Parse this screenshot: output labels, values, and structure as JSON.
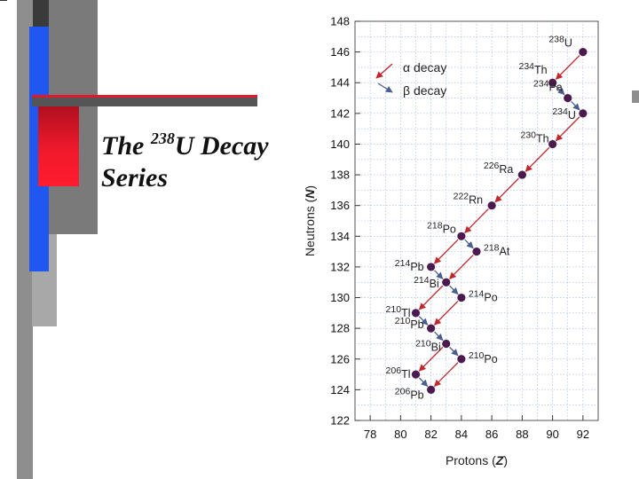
{
  "slide": {
    "title_text": "The ",
    "title_superscript": "238",
    "title_element": "U Decay",
    "title_line2": "Series"
  },
  "colors": {
    "alpha": "#c0282d",
    "beta": "#4a5e8f",
    "point": "#4b1a4e",
    "bar_red": "#e0192b",
    "bar_blue": "#1f57f0",
    "bar_gray": "#8c8c8c",
    "bar_dark": "#6a6a6a"
  },
  "chart_data": {
    "type": "scatter",
    "title": "",
    "xlabel": "Protons (",
    "xlabel_var": "Z",
    "xlabel_end": ")",
    "ylabel": "Neutrons (",
    "ylabel_var": "N",
    "ylabel_end": ")",
    "xlim": [
      77,
      93
    ],
    "ylim": [
      122,
      148
    ],
    "xticks": [
      "78",
      "80",
      "82",
      "84",
      "86",
      "88",
      "90",
      "92"
    ],
    "yticks": [
      "122",
      "124",
      "126",
      "128",
      "130",
      "132",
      "134",
      "136",
      "138",
      "140",
      "142",
      "144",
      "146",
      "148"
    ],
    "grid": true,
    "legend": [
      {
        "label": "α decay",
        "kind": "alpha"
      },
      {
        "label": "β decay",
        "kind": "beta"
      }
    ],
    "nuclides": [
      {
        "id": "U238",
        "mass": "238",
        "sym": "U",
        "z": 92,
        "n": 146
      },
      {
        "id": "Th234",
        "mass": "234",
        "sym": "Th",
        "z": 90,
        "n": 144
      },
      {
        "id": "Pa234",
        "mass": "234",
        "sym": "Pa",
        "z": 91,
        "n": 143
      },
      {
        "id": "U234",
        "mass": "234",
        "sym": "U",
        "z": 92,
        "n": 142
      },
      {
        "id": "Th230",
        "mass": "230",
        "sym": "Th",
        "z": 90,
        "n": 140
      },
      {
        "id": "Ra226",
        "mass": "226",
        "sym": "Ra",
        "z": 88,
        "n": 138
      },
      {
        "id": "Rn222",
        "mass": "222",
        "sym": "Rn",
        "z": 86,
        "n": 136
      },
      {
        "id": "Po218",
        "mass": "218",
        "sym": "Po",
        "z": 84,
        "n": 134
      },
      {
        "id": "At218",
        "mass": "218",
        "sym": "At",
        "z": 85,
        "n": 133
      },
      {
        "id": "Pb214",
        "mass": "214",
        "sym": "Pb",
        "z": 82,
        "n": 132
      },
      {
        "id": "Bi214",
        "mass": "214",
        "sym": "Bi",
        "z": 83,
        "n": 131
      },
      {
        "id": "Po214",
        "mass": "214",
        "sym": "Po",
        "z": 84,
        "n": 130
      },
      {
        "id": "Tl210",
        "mass": "210",
        "sym": "Tl",
        "z": 81,
        "n": 129
      },
      {
        "id": "Pb210",
        "mass": "210",
        "sym": "Pb",
        "z": 82,
        "n": 128
      },
      {
        "id": "Bi210",
        "mass": "210",
        "sym": "Bi",
        "z": 83,
        "n": 127
      },
      {
        "id": "Po210",
        "mass": "210",
        "sym": "Po",
        "z": 84,
        "n": 126
      },
      {
        "id": "Tl206",
        "mass": "206",
        "sym": "Tl",
        "z": 81,
        "n": 125
      },
      {
        "id": "Pb206",
        "mass": "206",
        "sym": "Pb",
        "z": 82,
        "n": 124
      }
    ],
    "decays": [
      {
        "from": "U238",
        "to": "Th234",
        "kind": "alpha"
      },
      {
        "from": "Th234",
        "to": "Pa234",
        "kind": "beta"
      },
      {
        "from": "Pa234",
        "to": "U234",
        "kind": "beta"
      },
      {
        "from": "U234",
        "to": "Th230",
        "kind": "alpha"
      },
      {
        "from": "Th230",
        "to": "Ra226",
        "kind": "alpha"
      },
      {
        "from": "Ra226",
        "to": "Rn222",
        "kind": "alpha"
      },
      {
        "from": "Rn222",
        "to": "Po218",
        "kind": "alpha"
      },
      {
        "from": "Po218",
        "to": "Pb214",
        "kind": "alpha"
      },
      {
        "from": "Po218",
        "to": "At218",
        "kind": "beta"
      },
      {
        "from": "At218",
        "to": "Bi214",
        "kind": "alpha"
      },
      {
        "from": "Pb214",
        "to": "Bi214",
        "kind": "beta"
      },
      {
        "from": "Bi214",
        "to": "Po214",
        "kind": "beta"
      },
      {
        "from": "Bi214",
        "to": "Tl210",
        "kind": "alpha"
      },
      {
        "from": "Po214",
        "to": "Pb210",
        "kind": "alpha"
      },
      {
        "from": "Tl210",
        "to": "Pb210",
        "kind": "beta"
      },
      {
        "from": "Pb210",
        "to": "Bi210",
        "kind": "beta"
      },
      {
        "from": "Bi210",
        "to": "Po210",
        "kind": "beta"
      },
      {
        "from": "Bi210",
        "to": "Tl206",
        "kind": "alpha"
      },
      {
        "from": "Po210",
        "to": "Pb206",
        "kind": "alpha"
      },
      {
        "from": "Tl206",
        "to": "Pb206",
        "kind": "beta"
      }
    ]
  }
}
